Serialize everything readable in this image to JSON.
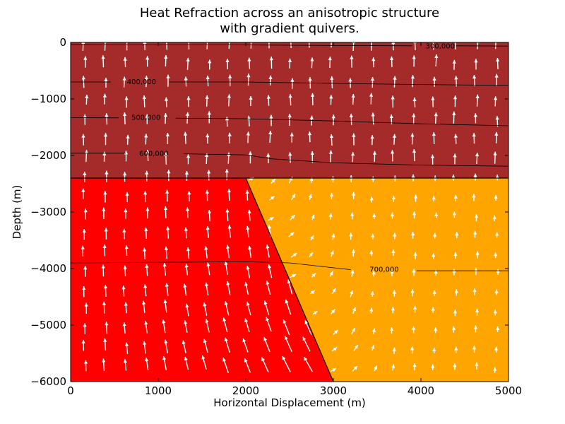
{
  "chart_data": {
    "type": "heatmap",
    "title_lines": [
      "Heat Refraction across an anisotropic structure",
      "with gradient quivers."
    ],
    "xlabel": "Horizontal Displacement (m)",
    "ylabel": "Depth (m)",
    "xlim": [
      0,
      5000
    ],
    "ylim": [
      -6000,
      0
    ],
    "xticks": [
      0,
      1000,
      2000,
      3000,
      4000,
      5000
    ],
    "yticks": [
      0,
      -1000,
      -2000,
      -3000,
      -4000,
      -5000,
      -6000
    ],
    "ytick_labels": [
      "0",
      "−1000",
      "−2000",
      "−3000",
      "−4000",
      "−5000",
      "−6000"
    ],
    "regions": [
      {
        "color": "#a52a2a",
        "polygon": [
          [
            0,
            0
          ],
          [
            5000,
            0
          ],
          [
            5000,
            -2400
          ],
          [
            0,
            -2400
          ]
        ]
      },
      {
        "color": "#ff0000",
        "polygon": [
          [
            0,
            -2400
          ],
          [
            2000,
            -2400
          ],
          [
            3000,
            -6000
          ],
          [
            0,
            -6000
          ]
        ]
      },
      {
        "color": "#ffa500",
        "polygon": [
          [
            2000,
            -2400
          ],
          [
            5000,
            -2400
          ],
          [
            5000,
            -6000
          ],
          [
            3000,
            -6000
          ]
        ]
      }
    ],
    "boundaries": [
      [
        [
          0,
          -2400
        ],
        [
          5000,
          -2400
        ]
      ],
      [
        [
          2000,
          -2400
        ],
        [
          3000,
          -6000
        ]
      ]
    ],
    "contours": [
      {
        "label": "300,000",
        "label_at": [
          4220,
          -70
        ],
        "points": [
          [
            0,
            -40
          ],
          [
            1000,
            -45
          ],
          [
            2000,
            -45
          ],
          [
            3000,
            -55
          ],
          [
            3900,
            -60
          ]
        ],
        "points2": [
          [
            4400,
            -60
          ],
          [
            5000,
            -65
          ]
        ]
      },
      {
        "label": "400,000",
        "label_at": [
          810,
          -700
        ],
        "points": [
          [
            0,
            -700
          ],
          [
            460,
            -700
          ]
        ],
        "points2": [
          [
            1130,
            -700
          ],
          [
            2000,
            -700
          ],
          [
            3000,
            -725
          ],
          [
            4000,
            -745
          ],
          [
            5000,
            -760
          ]
        ]
      },
      {
        "label": "500,000",
        "label_at": [
          860,
          -1330
        ],
        "points": [
          [
            0,
            -1330
          ],
          [
            550,
            -1335
          ]
        ],
        "points2": [
          [
            1200,
            -1340
          ],
          [
            2000,
            -1350
          ],
          [
            3000,
            -1390
          ],
          [
            4000,
            -1440
          ],
          [
            5000,
            -1475
          ]
        ]
      },
      {
        "label": "600,000",
        "label_at": [
          950,
          -1970
        ],
        "points": [
          [
            0,
            -1960
          ],
          [
            630,
            -1960
          ]
        ],
        "points2": [
          [
            1290,
            -1970
          ],
          [
            2000,
            -1990
          ],
          [
            2300,
            -2060
          ],
          [
            3000,
            -2130
          ],
          [
            4000,
            -2170
          ],
          [
            5000,
            -2190
          ]
        ]
      },
      {
        "label": "700,000",
        "label_at": [
          3580,
          -4020
        ],
        "points": [
          [
            0,
            -3900
          ],
          [
            1000,
            -3890
          ],
          [
            2000,
            -3880
          ],
          [
            2500,
            -3900
          ],
          [
            3200,
            -4020
          ]
        ],
        "points2": [
          [
            3950,
            -4040
          ],
          [
            5000,
            -4040
          ]
        ]
      }
    ],
    "quiver": {
      "color": "#ffffff",
      "x_spacing": 235,
      "y_spacing": 335
    }
  }
}
